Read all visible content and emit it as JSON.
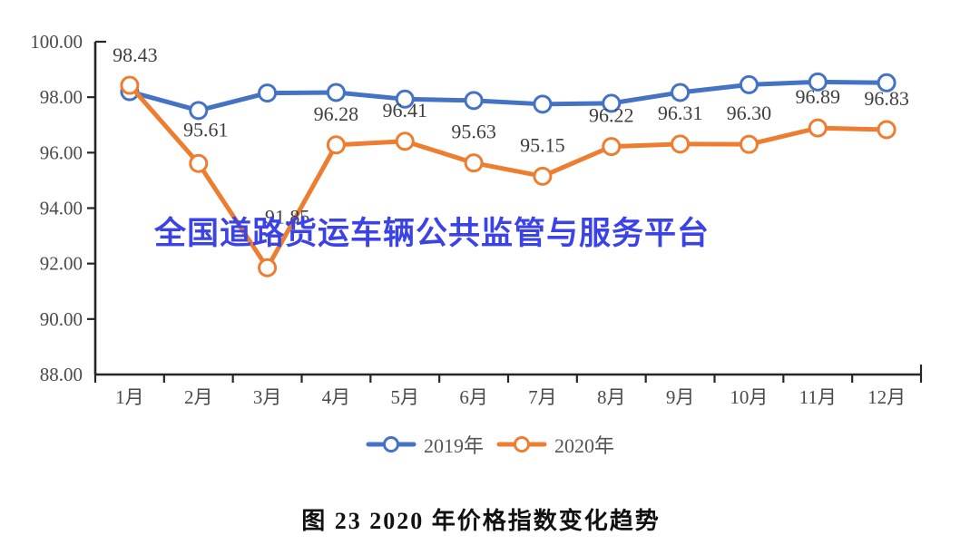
{
  "figure": {
    "watermark": "全国道路货运车辆公共监管与服务平台",
    "caption": "图 23 2020 年价格指数变化趋势"
  },
  "chart_data": {
    "type": "line",
    "title": "",
    "categories": [
      "1月",
      "2月",
      "3月",
      "4月",
      "5月",
      "6月",
      "7月",
      "8月",
      "9月",
      "10月",
      "11月",
      "12月"
    ],
    "series": [
      {
        "name": "2019年",
        "color": "#4472C4",
        "values": [
          98.2,
          97.52,
          98.15,
          98.17,
          97.93,
          97.88,
          97.75,
          97.78,
          98.17,
          98.45,
          98.55,
          98.52
        ]
      },
      {
        "name": "2020年",
        "color": "#ED7D31",
        "values": [
          98.43,
          95.61,
          91.85,
          96.28,
          96.41,
          95.63,
          95.15,
          96.22,
          96.31,
          96.3,
          96.89,
          96.83
        ],
        "data_labels": [
          "98.43",
          "95.61",
          "91.85",
          "96.28",
          "96.41",
          "95.63",
          "95.15",
          "96.22",
          "96.31",
          "96.30",
          "96.89",
          "96.83"
        ]
      }
    ],
    "ylim": [
      88,
      100
    ],
    "ytick_step": 2,
    "y_tick_labels": [
      "100.00",
      "98.00",
      "96.00",
      "94.00",
      "92.00",
      "90.00",
      "88.00"
    ],
    "grid": false,
    "legend_position": "bottom",
    "marker": "circle-open",
    "axis_color": "#262626",
    "tick_label_color": "#4a4a4a",
    "data_label_color": "#3f3f3f"
  }
}
